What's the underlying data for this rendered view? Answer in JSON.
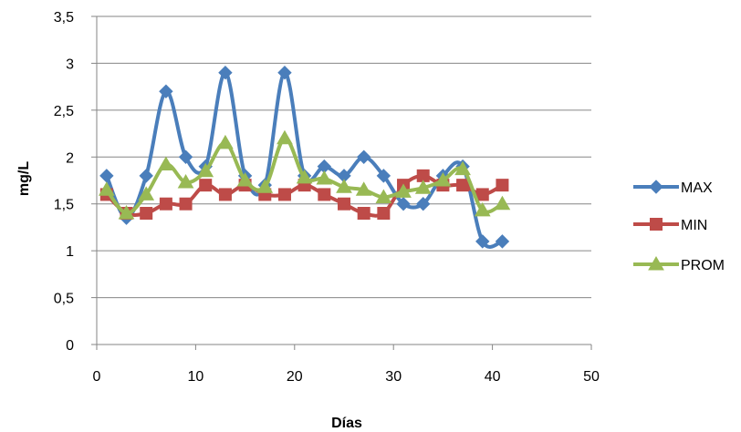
{
  "chart_data": {
    "type": "line",
    "xlabel": "Días",
    "ylabel": "mg/L",
    "xlim": [
      0,
      50
    ],
    "ylim": [
      0,
      3.5
    ],
    "x_ticks": [
      "0",
      "10",
      "20",
      "30",
      "40",
      "50"
    ],
    "y_ticks": [
      "0",
      "0,5",
      "1",
      "1,5",
      "2",
      "2,5",
      "3",
      "3,5"
    ],
    "grid": "horizontal",
    "legend_position": "right",
    "x": [
      1,
      3,
      5,
      7,
      9,
      11,
      13,
      15,
      17,
      19,
      21,
      23,
      25,
      27,
      29,
      31,
      33,
      35,
      37,
      39,
      41
    ],
    "series": [
      {
        "name": "MAX",
        "color": "#4a7ebb",
        "marker": "diamond",
        "values": [
          1.8,
          1.35,
          1.8,
          2.7,
          2.0,
          1.9,
          2.9,
          1.8,
          1.7,
          2.9,
          1.8,
          1.9,
          1.8,
          2.0,
          1.8,
          1.5,
          1.5,
          1.8,
          1.9,
          1.1,
          1.1
        ]
      },
      {
        "name": "MIN",
        "color": "#be4b48",
        "marker": "square",
        "values": [
          1.6,
          1.4,
          1.4,
          1.5,
          1.5,
          1.7,
          1.6,
          1.7,
          1.6,
          1.6,
          1.7,
          1.6,
          1.5,
          1.4,
          1.4,
          1.7,
          1.8,
          1.7,
          1.7,
          1.6,
          1.7
        ]
      },
      {
        "name": "PROM",
        "color": "#98b954",
        "marker": "triangle",
        "values": [
          1.65,
          1.4,
          1.6,
          1.92,
          1.73,
          1.85,
          2.15,
          1.75,
          1.68,
          2.2,
          1.78,
          1.77,
          1.68,
          1.65,
          1.57,
          1.63,
          1.67,
          1.75,
          1.87,
          1.43,
          1.5
        ]
      }
    ]
  }
}
